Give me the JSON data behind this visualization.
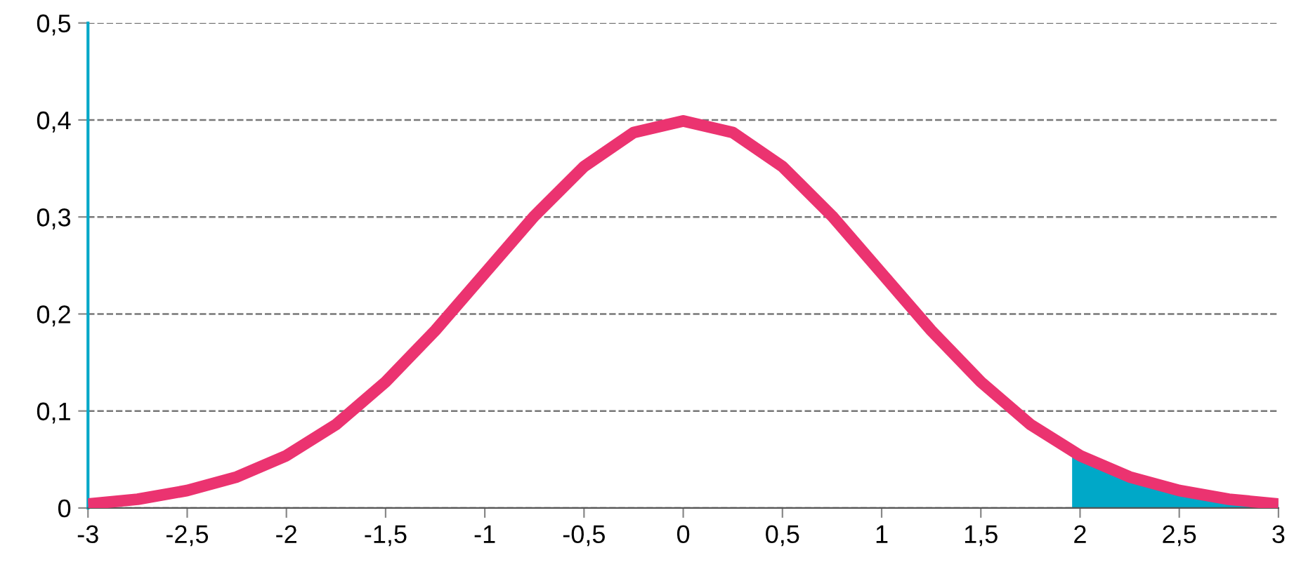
{
  "chart_data": {
    "type": "line",
    "series": [
      {
        "type": "area",
        "color": "#00a8c8",
        "x": [
          1.96,
          2,
          2.25,
          2.5,
          2.75,
          3
        ],
        "values": [
          0.058,
          0.054,
          0.032,
          0.018,
          0.009,
          0.004
        ]
      },
      {
        "color": "#eb3370",
        "x": [
          -3,
          -2.75,
          -2.5,
          -2.25,
          -2,
          -1.75,
          -1.5,
          -1.25,
          -1,
          -0.75,
          -0.5,
          -0.25,
          0,
          0.25,
          0.5,
          0.75,
          1,
          1.25,
          1.5,
          1.75,
          2,
          2.25,
          2.5,
          2.75,
          3
        ],
        "values": [
          0.004,
          0.009,
          0.018,
          0.032,
          0.054,
          0.086,
          0.13,
          0.183,
          0.242,
          0.301,
          0.352,
          0.387,
          0.399,
          0.387,
          0.352,
          0.301,
          0.242,
          0.183,
          0.13,
          0.086,
          0.054,
          0.032,
          0.018,
          0.009,
          0.004
        ]
      }
    ],
    "xlim": [
      -3,
      3
    ],
    "ylim": [
      0,
      0.5
    ],
    "xticks": [
      -3,
      {
        "value": -2.5,
        "label": "-2,5"
      },
      -2,
      {
        "value": -1.5,
        "label": "-1,5"
      },
      -1,
      {
        "value": -0.5,
        "label": "-0,5"
      },
      0,
      {
        "value": 0.5,
        "label": "0,5"
      },
      1,
      {
        "value": 1.5,
        "label": "1,5"
      },
      2,
      {
        "value": 2.5,
        "label": "2,5"
      },
      3
    ],
    "yticks": [
      0,
      {
        "value": 0.1,
        "label": "0,1"
      },
      {
        "value": 0.2,
        "label": "0,2"
      },
      {
        "value": 0.3,
        "label": "0,3"
      },
      {
        "value": 0.4,
        "label": "0,4"
      },
      {
        "value": 0.5,
        "label": "0,5"
      }
    ],
    "grid": "y",
    "marker": "none",
    "line_style": "solid"
  }
}
